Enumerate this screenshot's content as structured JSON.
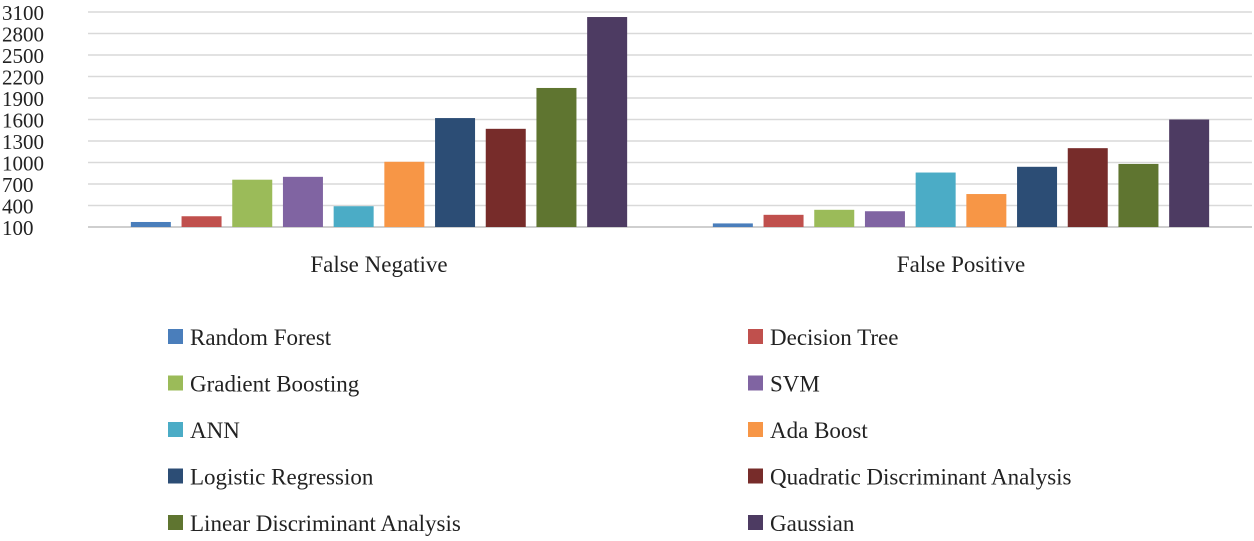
{
  "chart_data": {
    "type": "bar",
    "title": "",
    "xlabel": "",
    "ylabel": "",
    "ylim": [
      100,
      3100
    ],
    "yticks": [
      100,
      400,
      700,
      1000,
      1300,
      1600,
      1900,
      2200,
      2500,
      2800,
      3100
    ],
    "ytick_labels": [
      "100",
      "400",
      "700",
      "1000",
      "1300",
      "1600",
      "1900",
      "2200",
      "2500",
      "2800",
      "3100"
    ],
    "grid": true,
    "legend_position": "bottom",
    "categories": [
      "False Negative",
      "False Positive"
    ],
    "series": [
      {
        "name": "Random Forest",
        "color": "#4a7ebb",
        "values": [
          170,
          150
        ]
      },
      {
        "name": "Decision Tree",
        "color": "#c0504d",
        "values": [
          250,
          270
        ]
      },
      {
        "name": "Gradient Boosting",
        "color": "#9bbb59",
        "values": [
          760,
          340
        ]
      },
      {
        "name": "SVM",
        "color": "#8064a2",
        "values": [
          800,
          320
        ]
      },
      {
        "name": "ANN",
        "color": "#4bacc6",
        "values": [
          390,
          860
        ]
      },
      {
        "name": "Ada Boost",
        "color": "#f79646",
        "values": [
          1010,
          560
        ]
      },
      {
        "name": "Logistic Regression",
        "color": "#2c4d75",
        "values": [
          1620,
          940
        ]
      },
      {
        "name": "Quadratic Discriminant Analysis",
        "color": "#772c2a",
        "values": [
          1470,
          1200
        ]
      },
      {
        "name": "Linear Discriminant Analysis",
        "color": "#5f7530",
        "values": [
          2040,
          980
        ]
      },
      {
        "name": "Gaussian",
        "color": "#4d3b62",
        "values": [
          3030,
          1600
        ]
      }
    ]
  }
}
